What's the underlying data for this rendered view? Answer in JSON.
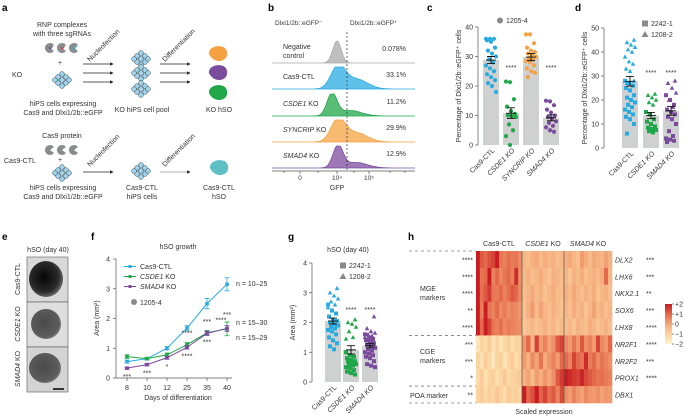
{
  "figure": {
    "panel_labels": {
      "a": "a",
      "b": "b",
      "c": "c",
      "d": "d",
      "e": "e",
      "f": "f",
      "g": "g",
      "h": "h"
    },
    "colors": {
      "cas9": "#29abe2",
      "csde1": "#1fa74a",
      "syncrip": "#f5a142",
      "smad4": "#7b4b9e",
      "bar": "#cfd0d0",
      "neg": "#a9a9a9",
      "star_green": "#3cb54a",
      "star_purple": "#8e4aa0"
    }
  },
  "panel_a": {
    "ko": {
      "row_label": "KO",
      "reagent_1": "RNP complexes",
      "reagent_2": "with three sgRNAs",
      "plus": "+",
      "cells_1": "hiPS cells expressing",
      "cells_2": "Cas9 and Dlxi1/2b::eGFP",
      "step_1": "Nucleofection",
      "step_2": "Differentiation",
      "intermediate": "KO hiPS cell pool",
      "product": "KO hSO"
    },
    "ctl": {
      "row_label": "Cas9-CTL",
      "reagent_1": "Cas9 protein",
      "plus": "+",
      "cells_1": "hiPS cells expressing",
      "cells_2": "Cas9 and Dlxi1/2b::eGFP",
      "step_1": "Nucleofection",
      "step_2": "Differentiation",
      "intermediate_1": "Cas9-CTL",
      "intermediate_2": "hiPS cells",
      "product_1": "Cas9-CTL",
      "product_2": "hSO"
    }
  },
  "chart_data": [
    {
      "panel": "b",
      "type": "area",
      "header_negative": "Dlxi1/2b::eGFP⁻",
      "header_positive": "Dlxi1/2b::eGFP⁺",
      "xlabel": "GFP",
      "x_ticks": [
        "0",
        "10⁴",
        "10⁵"
      ],
      "rows": [
        {
          "label_1": "Negative",
          "label_2": "control",
          "gene": "",
          "suffix": "",
          "percent": "0.078%"
        },
        {
          "label_1": "Cas9-CTL",
          "gene": "",
          "suffix": "",
          "percent": "33.1%"
        },
        {
          "gene": "CSDE1",
          "suffix": " KO",
          "percent": "11.2%"
        },
        {
          "gene": "SYNCRIP",
          "suffix": " KO",
          "percent": "29.9%"
        },
        {
          "gene": "SMAD4",
          "suffix": " KO",
          "percent": "12.9%"
        }
      ]
    },
    {
      "panel": "c",
      "type": "bar",
      "ylabel": "Percentage of Dlxi1/2b::eGFP⁺ cells",
      "ylim": [
        0,
        40
      ],
      "y_ticks": [
        "0",
        "10",
        "20",
        "30",
        "40"
      ],
      "legend": [
        {
          "label": "1205-4",
          "marker": "circle"
        }
      ],
      "categories": [
        "Cas9-CTL",
        "CSDE1 KO",
        "SYNCRIP KO",
        "SMAD4 KO"
      ],
      "values": [
        28.8,
        10.8,
        29.8,
        9.2
      ],
      "sem": [
        1.2,
        1.8,
        1.2,
        1.0
      ],
      "significance": [
        "",
        "****",
        "",
        "****"
      ],
      "points": [
        [
          36,
          36,
          36,
          35.5,
          35,
          33,
          32,
          31,
          30,
          29,
          28,
          27,
          26,
          25,
          24,
          23,
          22,
          21,
          20,
          18
        ],
        [
          21.5,
          21.3,
          15.5,
          13,
          11.5,
          10.5,
          10,
          9.8,
          9.5,
          7,
          5,
          3,
          0
        ],
        [
          37.5,
          37.5,
          34.5,
          33,
          32,
          31.5,
          31,
          30.5,
          30,
          29.5,
          29,
          28.5,
          28,
          27,
          26,
          25,
          24.5,
          23
        ],
        [
          15,
          14.8,
          13.5,
          12,
          11,
          10,
          9.5,
          9,
          8,
          7.5,
          6.5,
          6,
          5,
          4.5
        ]
      ]
    },
    {
      "panel": "d",
      "type": "bar",
      "ylabel": "Percentage of Dlxi1/2b::eGFP⁺ cells",
      "ylim": [
        0,
        50
      ],
      "y_ticks": [
        "0",
        "10",
        "20",
        "30",
        "40",
        "50"
      ],
      "legend": [
        {
          "label": "2242-1",
          "marker": "square"
        },
        {
          "label": "1208-2",
          "marker": "triangle"
        }
      ],
      "categories": [
        "Cas9-CTL",
        "CSDE1 KO",
        "SMAD4 KO"
      ],
      "values": [
        27.8,
        13.5,
        15.5
      ],
      "sem": [
        2.0,
        1.3,
        1.8
      ],
      "significance": [
        "",
        "****",
        "****"
      ],
      "points_square": [
        [
          28,
          27,
          26,
          25,
          24,
          22,
          21,
          20,
          19,
          18,
          17,
          16,
          15,
          14,
          13,
          12,
          10,
          6
        ],
        [
          15,
          14,
          12,
          11,
          10,
          9,
          8.5,
          8,
          7.5,
          7,
          6.5
        ],
        [
          22,
          20,
          18,
          16,
          15,
          14,
          13,
          12,
          10,
          7,
          5,
          4,
          3.5,
          3,
          2.5
        ]
      ],
      "points_triangle": [
        [
          45,
          44,
          43,
          42,
          41,
          40,
          38,
          36,
          35,
          33,
          32,
          28,
          27
        ],
        [
          22.5,
          22,
          21,
          20,
          19,
          18
        ],
        [
          28,
          27,
          25,
          23,
          20,
          17
        ]
      ]
    },
    {
      "panel": "f",
      "type": "line",
      "title": "hSO growth",
      "xlabel": "Days of differentiation",
      "ylabel": "Area (mm²)",
      "categories": [
        "8",
        "10",
        "12",
        "25",
        "35",
        "40"
      ],
      "ylim": [
        0,
        4
      ],
      "y_ticks": [
        "0",
        "1",
        "2",
        "3",
        "4"
      ],
      "legend_extra": {
        "label": "1205-4",
        "marker": "circle"
      },
      "series": [
        {
          "name": "Cas9-CTL",
          "gene": "",
          "suffix": "",
          "values": [
            0.55,
            0.65,
            1.0,
            1.68,
            2.5,
            3.15
          ],
          "err": [
            0.05,
            0.04,
            0.06,
            0.08,
            0.17,
            0.22
          ],
          "n": "n = 10–25",
          "stars": [
            "",
            "",
            "",
            "",
            "",
            ""
          ]
        },
        {
          "name": "CSDE1 KO",
          "gene": "CSDE1",
          "suffix": " KO",
          "values": [
            0.72,
            0.65,
            0.78,
            1.12,
            1.52,
            1.65
          ],
          "err": [
            0.06,
            0.04,
            0.06,
            0.07,
            0.08,
            0.23
          ],
          "n": "n = 15–30",
          "stars": [
            "",
            "",
            "",
            "****",
            "***",
            "***"
          ]
        },
        {
          "name": "SMAD4 KO",
          "gene": "SMAD4",
          "suffix": " KO",
          "values": [
            0.33,
            0.45,
            0.68,
            1.03,
            1.5,
            1.67
          ],
          "err": [
            0.03,
            0.04,
            0.05,
            0.06,
            0.07,
            0.1
          ],
          "n": "n = 15–29",
          "stars": [
            "***",
            "***",
            "*",
            "****",
            "***",
            "****"
          ]
        }
      ]
    },
    {
      "panel": "g",
      "type": "bar",
      "title": "hSO (day 40)",
      "ylabel": "Area (mm²)",
      "ylim": [
        0,
        4
      ],
      "y_ticks": [
        "0",
        "1",
        "2",
        "3",
        "4"
      ],
      "legend": [
        {
          "label": "2242-1",
          "marker": "square"
        },
        {
          "label": "1208-2",
          "marker": "triangle"
        }
      ],
      "categories": [
        "Cas9-CTL",
        "CSDE1 KO",
        "SMAD4 KO"
      ],
      "values": [
        2.05,
        1.08,
        1.22
      ],
      "sem": [
        0.1,
        0.14,
        0.07
      ],
      "significance": [
        "",
        "****",
        "****"
      ],
      "points_square": [
        [
          2.6,
          2.4,
          2.3,
          2.2,
          2.1,
          2.05,
          2.0,
          1.95,
          1.9,
          1.85,
          1.8,
          1.75,
          1.7,
          1.6,
          1.5,
          1.4,
          1.3,
          1.2,
          1.1
        ],
        [
          1.0,
          0.9,
          0.85,
          0.8,
          0.75,
          0.7,
          0.68,
          0.65,
          0.6,
          0.58,
          0.55,
          0.5,
          0.45,
          0.4,
          0.35,
          0.3,
          0.25
        ],
        [
          1.6,
          1.5,
          1.45,
          1.4,
          1.35,
          1.3,
          1.25,
          1.2,
          1.15,
          1.1,
          1.05,
          1.0,
          0.95,
          0.9,
          0.85,
          0.8,
          0.7,
          0.6,
          0.55,
          0.5
        ]
      ],
      "points_triangle": [
        [
          3.15,
          3.0,
          2.9,
          2.8,
          2.7,
          2.6,
          2.5,
          2.4,
          2.3,
          2.2,
          2.0,
          1.9
        ],
        [
          2.1,
          2.0,
          1.95,
          1.85,
          1.7,
          1.5,
          1.45
        ],
        [
          2.2,
          1.8,
          1.7,
          1.65,
          1.6,
          1.55,
          1.5,
          1.45,
          1.4
        ]
      ]
    },
    {
      "panel": "h",
      "type": "heatmap",
      "groups": [
        {
          "gene": "",
          "label": "Cas9-CTL",
          "suffix": "",
          "n": 12
        },
        {
          "gene": "CSDE1",
          "suffix": " KO",
          "n": 10
        },
        {
          "gene": "SMAD4",
          "suffix": " KO",
          "n": 12
        }
      ],
      "row_groups": [
        {
          "label_1": "MGE",
          "label_2": "markers",
          "rows": 5
        },
        {
          "label_1": "CGE",
          "label_2": "markers",
          "rows": 3
        },
        {
          "label_1": "POA marker",
          "label_2": "",
          "rows": 1
        }
      ],
      "genes": [
        "DLX2",
        "LHX6",
        "NKX2.1",
        "SOX6",
        "LHX8",
        "NR2F1",
        "NR2F2",
        "PROX1",
        "DBX1"
      ],
      "left_stars": [
        "****",
        "****",
        "****",
        "**",
        "****",
        "***",
        "***",
        "*",
        "**"
      ],
      "right_stars": [
        "***",
        "***",
        "**",
        "***",
        "****",
        "****",
        "***",
        "****",
        ""
      ],
      "colorbar": {
        "label": "Scaled expression",
        "ticks": [
          "+2",
          "+1",
          "0",
          "−1",
          "−2"
        ],
        "range": [
          -2,
          2
        ],
        "colors": [
          "#fef4c8",
          "#fbd3a0",
          "#f4a97a",
          "#e4684a",
          "#c61c22"
        ]
      },
      "values": [
        [
          2,
          1.2,
          1,
          1.3,
          1.5,
          2,
          0.8,
          0.6,
          0.9,
          0.7,
          0.8,
          0.5,
          -0.3,
          -0.5,
          -0.2,
          0,
          -0.4,
          -0.1,
          -0.3,
          -0.2,
          -0.5,
          -0.3,
          -0.2,
          0,
          -0.3,
          -0.5,
          0.2,
          -0.1,
          -0.4,
          0,
          -0.2,
          -0.3,
          0.1,
          -0.2
        ],
        [
          2,
          0.8,
          1,
          2,
          0.6,
          1,
          0.5,
          0.8,
          1,
          0.6,
          1.8,
          0.4,
          -0.4,
          -0.2,
          -0.5,
          -0.3,
          -0.1,
          -0.4,
          -0.6,
          -0.2,
          -0.3,
          -0.5,
          -0.3,
          -0.6,
          -0.2,
          -0.4,
          -0.1,
          -0.5,
          -0.3,
          -0.2,
          -0.4,
          -0.1,
          1,
          -0.3
        ],
        [
          2,
          0.9,
          1.2,
          1.6,
          0.8,
          0.7,
          1,
          0.6,
          0.9,
          1.2,
          1,
          0.5,
          -0.5,
          -0.3,
          0,
          -0.4,
          -0.2,
          -0.6,
          -0.3,
          -0.1,
          -0.4,
          -0.5,
          -0.2,
          -0.4,
          0,
          -0.3,
          -0.5,
          -0.2,
          -0.4,
          -0.1,
          -0.6,
          -0.3,
          -0.2,
          -0.5
        ],
        [
          2,
          0.7,
          2,
          0.8,
          0.6,
          1,
          0.5,
          0.7,
          0.4,
          0.6,
          0.5,
          0.3,
          -0.6,
          -0.2,
          0.2,
          -0.4,
          0.1,
          -0.3,
          -0.5,
          -0.2,
          -0.4,
          -0.6,
          -0.3,
          -0.5,
          -0.1,
          -0.4,
          -0.2,
          -0.6,
          -0.3,
          0.1,
          -0.4,
          -0.2,
          -0.5,
          -0.3
        ],
        [
          2,
          1,
          2,
          1.5,
          0.8,
          0.6,
          0.9,
          0.5,
          0.7,
          0.6,
          0.5,
          0.4,
          -0.7,
          -0.5,
          -0.3,
          -0.6,
          -0.4,
          -0.2,
          -0.5,
          -0.3,
          -0.6,
          -0.4,
          -0.5,
          -0.3,
          -0.6,
          -0.2,
          -0.4,
          -0.5,
          -0.1,
          -0.3,
          -0.6,
          -0.4,
          -0.2,
          -0.5
        ],
        [
          -1.5,
          -1,
          -1.2,
          -0.8,
          -1.4,
          -1,
          -1.6,
          -1.2,
          -0.9,
          -1.3,
          -1,
          -1.1,
          0.3,
          1,
          -0.2,
          1.5,
          0.2,
          0.6,
          0.1,
          0.4,
          1.2,
          1.5,
          0.5,
          0.2,
          0.8,
          0.3,
          1.2,
          0.4,
          0.6,
          0.2,
          1.5,
          0.5,
          0.3,
          1
        ],
        [
          -1,
          -1.4,
          -0.8,
          -1.2,
          -1.6,
          -1,
          -0.9,
          -1.5,
          -1.1,
          -0.8,
          -1.3,
          -1,
          0.2,
          -0.2,
          0.5,
          0.1,
          0.8,
          -0.1,
          0.3,
          0.6,
          0.2,
          1,
          1,
          0.6,
          1.5,
          1,
          0.8,
          1.8,
          0.7,
          1,
          0.5,
          0.8,
          0.6,
          0.4
        ],
        [
          -1.2,
          -0.8,
          -1.4,
          -1,
          -0.9,
          -1.3,
          -1.1,
          -0.7,
          -1.2,
          -1,
          -0.9,
          -0.8,
          -0.2,
          0.1,
          -0.4,
          0.2,
          -0.1,
          0.3,
          0,
          0.4,
          1.2,
          1.6,
          2,
          1.8,
          1.6,
          1.5,
          1.9,
          1.4,
          1.2,
          1,
          0.8,
          0.9,
          0.7,
          0.6
        ],
        [
          -1,
          -0.8,
          -1.2,
          -0.9,
          -1.1,
          -0.7,
          -1,
          -1.3,
          -0.8,
          -1,
          -0.9,
          -1.1,
          2,
          1,
          1.3,
          2,
          1.1,
          1.5,
          0.9,
          1.2,
          0.6,
          1.4,
          0.4,
          0.2,
          0.6,
          0.3,
          0.1,
          0.5,
          0.3,
          0.2,
          0.4,
          0.1,
          0.3,
          0.2
        ]
      ]
    }
  ],
  "panel_e": {
    "title": "hSO (day 40)",
    "row_labels": [
      {
        "gene": "",
        "label": "Cas9-CTL",
        "suffix": ""
      },
      {
        "gene": "CSDE1",
        "suffix": " KO"
      },
      {
        "gene": "SMAD4",
        "suffix": " KO"
      }
    ]
  }
}
